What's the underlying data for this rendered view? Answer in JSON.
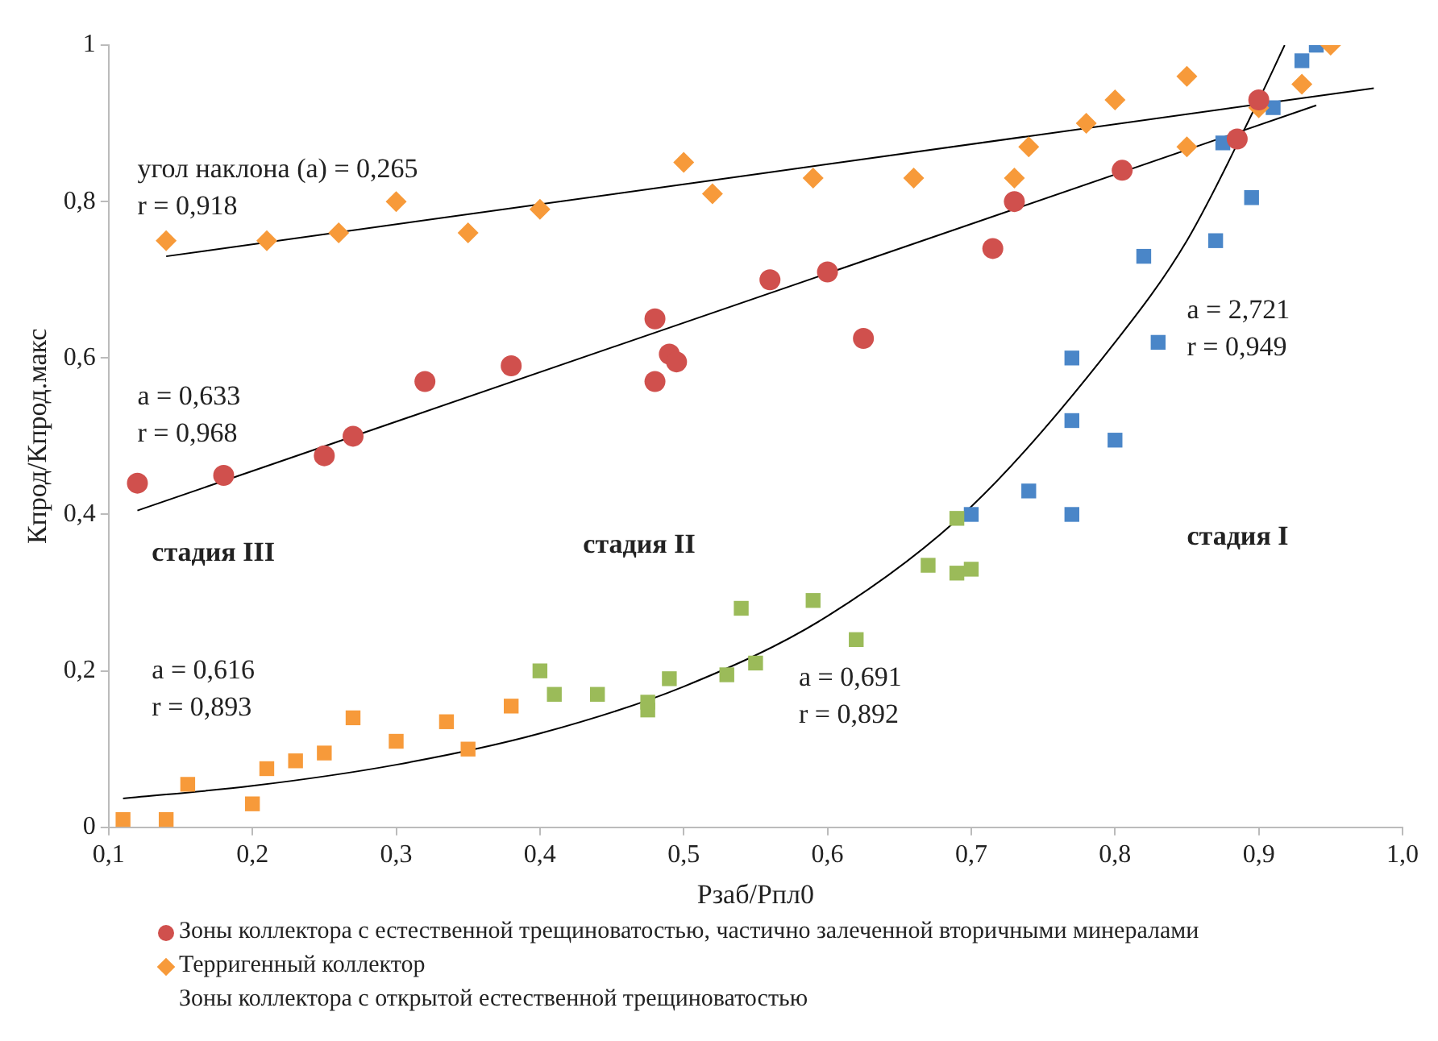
{
  "chart_data": {
    "type": "scatter",
    "xlabel": "Рзаб/Рпл0",
    "ylabel": "Кпрод/Кпрод.макс",
    "xlim": [
      0.1,
      1.0
    ],
    "ylim": [
      0,
      1
    ],
    "xticks": [
      {
        "value": 0.1,
        "label": "0,1"
      },
      {
        "value": 0.2,
        "label": "0,2"
      },
      {
        "value": 0.3,
        "label": "0,3"
      },
      {
        "value": 0.4,
        "label": "0,4"
      },
      {
        "value": 0.5,
        "label": "0,5"
      },
      {
        "value": 0.6,
        "label": "0,6"
      },
      {
        "value": 0.7,
        "label": "0,7"
      },
      {
        "value": 0.8,
        "label": "0,8"
      },
      {
        "value": 0.9,
        "label": "0,9"
      },
      {
        "value": 1.0,
        "label": "1,0"
      }
    ],
    "yticks": [
      0,
      {
        "value": 0.2,
        "label": "0,2"
      },
      {
        "value": 0.4,
        "label": "0,4"
      },
      {
        "value": 0.6,
        "label": "0,6"
      },
      {
        "value": 0.8,
        "label": "0,8"
      },
      1
    ],
    "grid": false,
    "legend": "bottom",
    "series": [
      {
        "name": "Зоны коллектора с естественной трещиноватостью, частично залеченной вторичными минералами",
        "type": "scatter",
        "marker": "circle",
        "color": "#d0504d",
        "x": [
          0.12,
          0.18,
          0.25,
          0.27,
          0.32,
          0.38,
          0.48,
          0.48,
          0.49,
          0.495,
          0.56,
          0.6,
          0.625,
          0.715,
          0.73,
          0.805,
          0.885,
          0.9
        ],
        "values": [
          0.44,
          0.45,
          0.475,
          0.5,
          0.57,
          0.59,
          0.57,
          0.65,
          0.605,
          0.595,
          0.7,
          0.71,
          0.625,
          0.74,
          0.8,
          0.84,
          0.88,
          0.93
        ]
      },
      {
        "name": "Терригенный коллектор",
        "type": "scatter",
        "marker": "diamond",
        "color": "#f79a3a",
        "x": [
          0.14,
          0.21,
          0.26,
          0.3,
          0.35,
          0.4,
          0.5,
          0.52,
          0.59,
          0.66,
          0.73,
          0.74,
          0.78,
          0.8,
          0.85,
          0.85,
          0.9,
          0.93,
          0.95
        ],
        "values": [
          0.75,
          0.75,
          0.76,
          0.8,
          0.76,
          0.79,
          0.85,
          0.81,
          0.83,
          0.83,
          0.83,
          0.87,
          0.9,
          0.93,
          0.96,
          0.87,
          0.92,
          0.95,
          1.0
        ]
      },
      {
        "type": "scatter",
        "marker": "square",
        "color": "#f79a3a",
        "x": [
          0.11,
          0.14,
          0.155,
          0.2,
          0.21,
          0.23,
          0.25,
          0.27,
          0.3,
          0.335,
          0.35,
          0.38
        ],
        "values": [
          0.01,
          0.01,
          0.055,
          0.03,
          0.075,
          0.085,
          0.095,
          0.14,
          0.11,
          0.135,
          0.1,
          0.155
        ]
      },
      {
        "type": "scatter",
        "marker": "square",
        "color": "#9bbb59",
        "x": [
          0.4,
          0.41,
          0.44,
          0.475,
          0.475,
          0.49,
          0.53,
          0.54,
          0.55,
          0.59,
          0.62,
          0.67,
          0.69,
          0.7,
          0.69
        ],
        "values": [
          0.2,
          0.17,
          0.17,
          0.15,
          0.16,
          0.19,
          0.195,
          0.28,
          0.21,
          0.29,
          0.24,
          0.335,
          0.325,
          0.33,
          0.395
        ]
      },
      {
        "type": "scatter",
        "marker": "square",
        "color": "#4a86c8",
        "x": [
          0.7,
          0.74,
          0.77,
          0.77,
          0.8,
          0.77,
          0.83,
          0.82,
          0.87,
          0.895,
          0.875,
          0.91,
          0.93,
          0.94
        ],
        "values": [
          0.4,
          0.43,
          0.4,
          0.52,
          0.495,
          0.6,
          0.62,
          0.73,
          0.75,
          0.805,
          0.875,
          0.92,
          0.98,
          1.0
        ]
      },
      {
        "type": "line",
        "marker": "none",
        "color": "#000000",
        "x": [
          0.14,
          0.98
        ],
        "values": [
          0.73,
          0.945
        ]
      },
      {
        "type": "line",
        "marker": "none",
        "color": "#000000",
        "x": [
          0.12,
          0.94
        ],
        "values": [
          0.405,
          0.923
        ]
      },
      {
        "type": "line",
        "marker": "none",
        "color": "#000000",
        "x": [
          0.11,
          0.2,
          0.3,
          0.4,
          0.5,
          0.6,
          0.7,
          0.8,
          0.85,
          0.9,
          0.918
        ],
        "values": [
          0.037,
          0.053,
          0.08,
          0.12,
          0.18,
          0.27,
          0.41,
          0.62,
          0.75,
          0.93,
          1.0
        ]
      }
    ],
    "annotations": [
      "угол наклона (а) = 0,265\nr = 0,918",
      "a = 0,633\nr = 0,968",
      "a = 2,721\nr = 0,949",
      "стадия III",
      "стадия II",
      "стадия I",
      "a = 0,616\nr = 0,893",
      "a = 0,691\nr = 0,892",
      "Зоны коллектора с открытой естественной трещиноватостью"
    ]
  }
}
